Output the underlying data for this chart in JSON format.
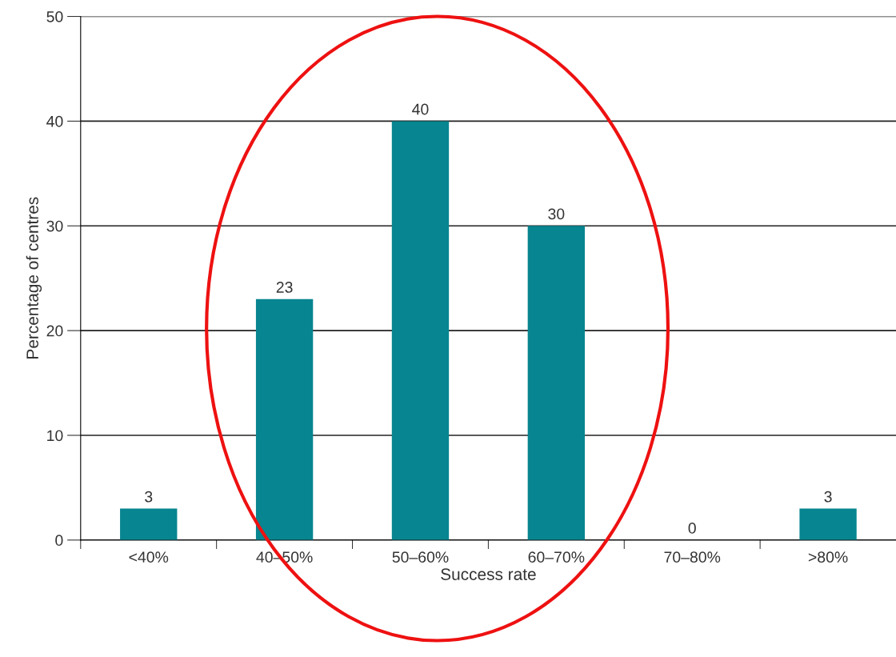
{
  "chart_data": {
    "type": "bar",
    "xlabel": "Success rate",
    "ylabel": "Percentage of centres",
    "categories": [
      "<40%",
      "40–50%",
      "50–60%",
      "60–70%",
      "70–80%",
      ">80%"
    ],
    "values": [
      3,
      23,
      40,
      30,
      0,
      3
    ],
    "color": "#078590",
    "ylim": [
      0,
      50
    ],
    "yticks": [
      0,
      10,
      20,
      30,
      40,
      50
    ],
    "grid": "y",
    "data_labels": true
  }
}
